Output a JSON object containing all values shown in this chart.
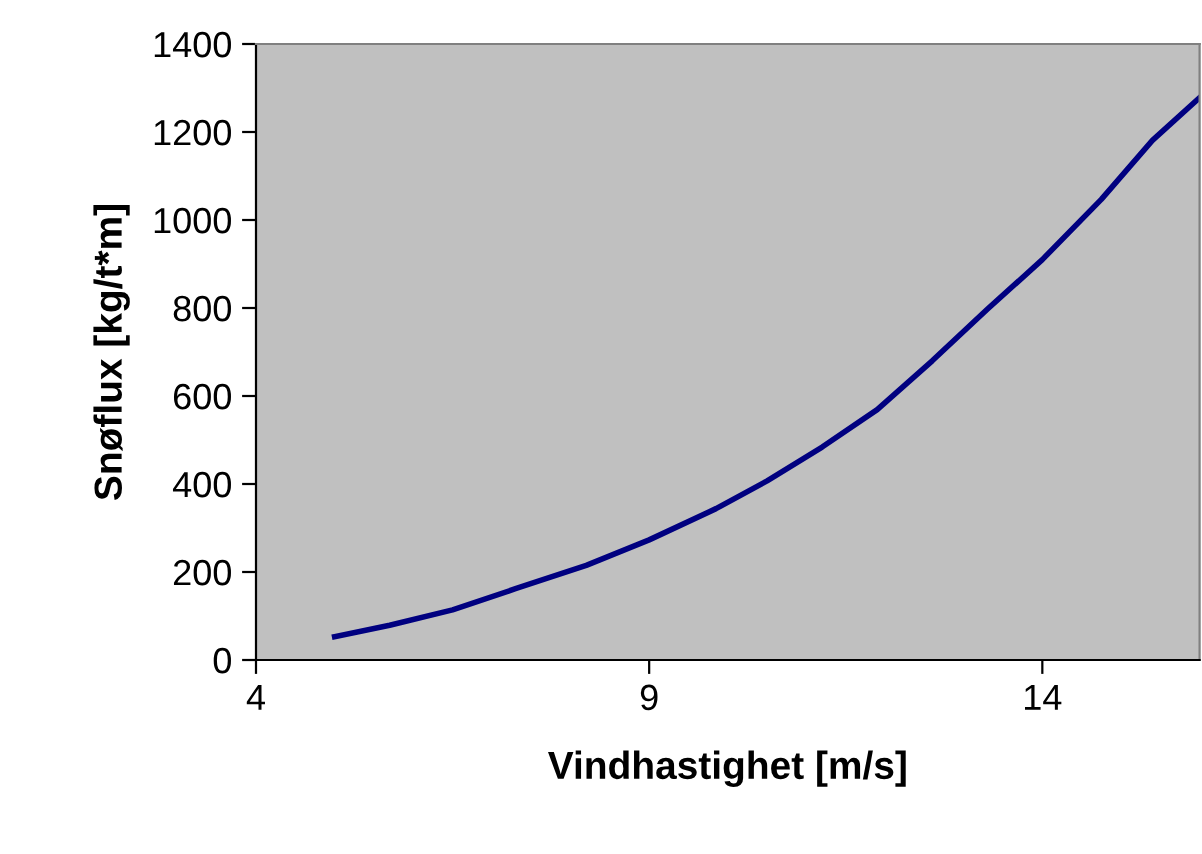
{
  "chart_data": {
    "type": "line",
    "xlabel": "Vindhastighet [m/s]",
    "ylabel": "Snøflux [kg/t*m]",
    "x": [
      5.0,
      5.7,
      6.5,
      7.3,
      8.2,
      9.0,
      9.85,
      10.5,
      11.2,
      11.9,
      12.6,
      13.3,
      14.0,
      14.75,
      15.4,
      16.0
    ],
    "series": [
      {
        "color": "#000080",
        "values": [
          53,
          79,
          114,
          162,
          215,
          273,
          344,
          407,
          484,
          569,
          680,
          797,
          910,
          1047,
          1181,
          1278
        ]
      }
    ],
    "xlim": [
      4,
      16
    ],
    "xticks": [
      4,
      9,
      14
    ],
    "ylim": [
      0,
      1400
    ],
    "yticks": [
      0,
      200,
      400,
      600,
      800,
      1000,
      1200,
      1400
    ],
    "grid": false,
    "legend": false,
    "marker": "none",
    "line_style": "solid"
  }
}
